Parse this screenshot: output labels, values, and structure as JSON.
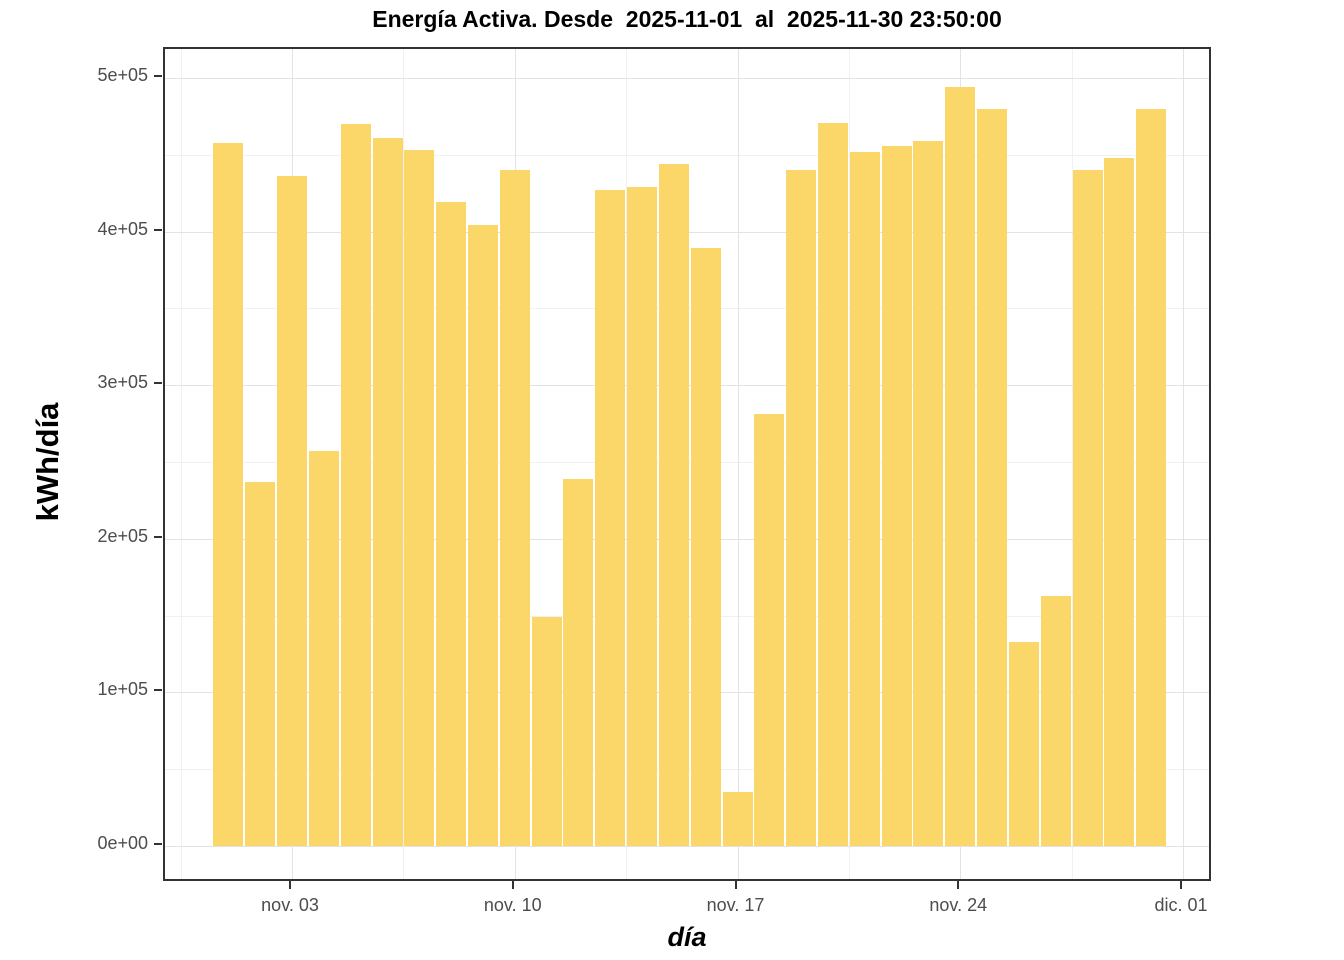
{
  "chart_data": {
    "type": "bar",
    "title": "Energía Activa. Desde  2025-11-01  al  2025-11-30 23:50:00",
    "xlabel": "día",
    "ylabel": "kWh/día",
    "categories": [
      "2025-11-01",
      "2025-11-02",
      "2025-11-03",
      "2025-11-04",
      "2025-11-05",
      "2025-11-06",
      "2025-11-07",
      "2025-11-08",
      "2025-11-09",
      "2025-11-10",
      "2025-11-11",
      "2025-11-12",
      "2025-11-13",
      "2025-11-14",
      "2025-11-15",
      "2025-11-16",
      "2025-11-17",
      "2025-11-18",
      "2025-11-19",
      "2025-11-20",
      "2025-11-21",
      "2025-11-22",
      "2025-11-23",
      "2025-11-24",
      "2025-11-25",
      "2025-11-26",
      "2025-11-27",
      "2025-11-28",
      "2025-11-29",
      "2025-11-30"
    ],
    "values": [
      458000,
      237000,
      436000,
      257000,
      470000,
      461000,
      453000,
      419000,
      404000,
      440000,
      149000,
      239000,
      427000,
      429000,
      444000,
      389000,
      35000,
      281000,
      440000,
      471000,
      452000,
      456000,
      459000,
      494000,
      480000,
      133000,
      163000,
      440000,
      448000,
      480000
    ],
    "ylim": [
      0,
      500000
    ],
    "y_tick_values": [
      0,
      100000,
      200000,
      300000,
      400000,
      500000
    ],
    "y_tick_labels": [
      "0e+00",
      "1e+05",
      "2e+05",
      "3e+05",
      "4e+05",
      "5e+05"
    ],
    "y_minor_values": [
      50000,
      150000,
      250000,
      350000,
      450000
    ],
    "x_tick_days": [
      3,
      10,
      17,
      24,
      31
    ],
    "x_tick_labels": [
      "nov. 03",
      "nov. 10",
      "nov. 17",
      "nov. 24",
      "dic. 01"
    ],
    "x_minor_days": [
      -0.5,
      6.5,
      13.5,
      20.5,
      27.5
    ],
    "grid": "on",
    "legend": "none",
    "bar_color": "#FBD669",
    "major_grid_color": "#E3E3E3",
    "minor_grid_color": "#F1F1F1",
    "axis_text_color": "#4d4d4d",
    "panel_border_color": "#333333"
  }
}
